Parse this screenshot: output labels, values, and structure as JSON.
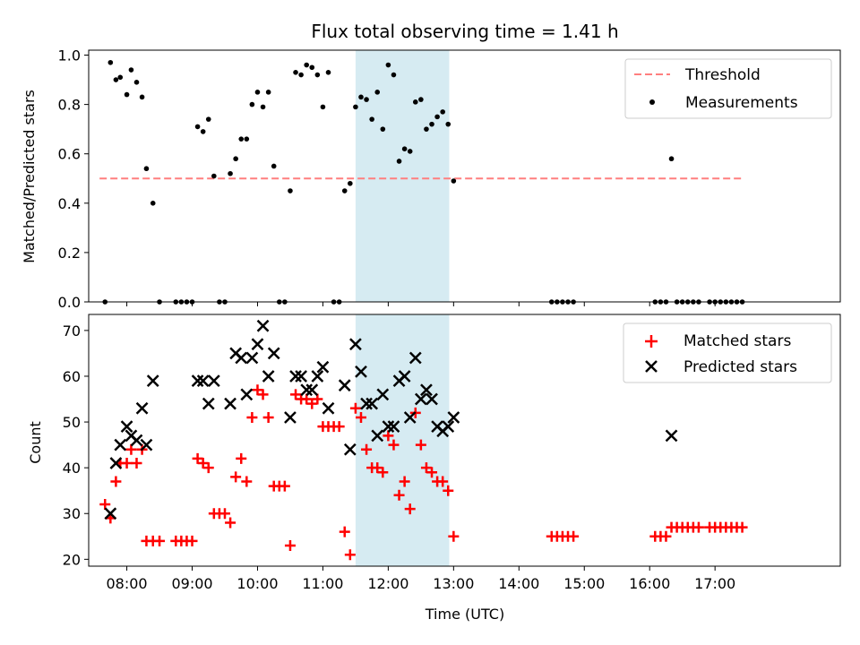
{
  "chart_data": [
    {
      "type": "scatter",
      "title": "Flux total observing time = 1.41 h",
      "ylabel": "Matched/Predicted stars",
      "xlabel": "",
      "xlim": [
        "07:25",
        "18:55"
      ],
      "ylim": [
        0,
        1.02
      ],
      "yticks": [
        "0.0",
        "0.2",
        "0.4",
        "0.6",
        "0.8",
        "1.0"
      ],
      "highlight_span": [
        "11:30",
        "12:56"
      ],
      "threshold": {
        "name": "Threshold",
        "value": 0.5,
        "x": [
          "07:35",
          "17:25"
        ],
        "color": "#ff7f7f"
      },
      "legend": {
        "placement": "top-right",
        "entries": [
          "Threshold",
          "Measurements"
        ]
      },
      "series": [
        {
          "name": "Measurements",
          "color": "#000000",
          "points": [
            [
              "07:40",
              0
            ],
            [
              "07:45",
              0.97
            ],
            [
              "07:50",
              0.9
            ],
            [
              "07:54",
              0.91
            ],
            [
              "08:00",
              0.84
            ],
            [
              "08:04",
              0.94
            ],
            [
              "08:09",
              0.89
            ],
            [
              "08:14",
              0.83
            ],
            [
              "08:18",
              0.54
            ],
            [
              "08:24",
              0.4
            ],
            [
              "08:30",
              0
            ],
            [
              "08:45",
              0
            ],
            [
              "08:50",
              0
            ],
            [
              "08:55",
              0
            ],
            [
              "09:00",
              0
            ],
            [
              "09:05",
              0.71
            ],
            [
              "09:10",
              0.69
            ],
            [
              "09:15",
              0.74
            ],
            [
              "09:20",
              0.51
            ],
            [
              "09:25",
              0
            ],
            [
              "09:30",
              0
            ],
            [
              "09:35",
              0.52
            ],
            [
              "09:40",
              0.58
            ],
            [
              "09:45",
              0.66
            ],
            [
              "09:50",
              0.66
            ],
            [
              "09:55",
              0.8
            ],
            [
              "10:00",
              0.85
            ],
            [
              "10:05",
              0.79
            ],
            [
              "10:10",
              0.85
            ],
            [
              "10:15",
              0.55
            ],
            [
              "10:20",
              0
            ],
            [
              "10:25",
              0
            ],
            [
              "10:30",
              0.45
            ],
            [
              "10:35",
              0.93
            ],
            [
              "10:40",
              0.92
            ],
            [
              "10:45",
              0.96
            ],
            [
              "10:50",
              0.95
            ],
            [
              "10:55",
              0.92
            ],
            [
              "11:00",
              0.79
            ],
            [
              "11:05",
              0.93
            ],
            [
              "11:10",
              0
            ],
            [
              "11:15",
              0
            ],
            [
              "11:20",
              0.45
            ],
            [
              "11:25",
              0.48
            ],
            [
              "11:30",
              0.79
            ],
            [
              "11:35",
              0.83
            ],
            [
              "11:40",
              0.82
            ],
            [
              "11:45",
              0.74
            ],
            [
              "11:50",
              0.85
            ],
            [
              "11:55",
              0.7
            ],
            [
              "12:00",
              0.96
            ],
            [
              "12:05",
              0.92
            ],
            [
              "12:10",
              0.57
            ],
            [
              "12:15",
              0.62
            ],
            [
              "12:20",
              0.61
            ],
            [
              "12:25",
              0.81
            ],
            [
              "12:30",
              0.82
            ],
            [
              "12:35",
              0.7
            ],
            [
              "12:40",
              0.72
            ],
            [
              "12:45",
              0.75
            ],
            [
              "12:50",
              0.77
            ],
            [
              "12:55",
              0.72
            ],
            [
              "13:00",
              0.49
            ],
            [
              "14:30",
              0
            ],
            [
              "14:35",
              0
            ],
            [
              "14:40",
              0
            ],
            [
              "14:45",
              0
            ],
            [
              "14:50",
              0
            ],
            [
              "16:05",
              0
            ],
            [
              "16:10",
              0
            ],
            [
              "16:15",
              0
            ],
            [
              "16:20",
              0.58
            ],
            [
              "16:25",
              0
            ],
            [
              "16:30",
              0
            ],
            [
              "16:35",
              0
            ],
            [
              "16:40",
              0
            ],
            [
              "16:45",
              0
            ],
            [
              "16:55",
              0
            ],
            [
              "17:00",
              0
            ],
            [
              "17:05",
              0
            ],
            [
              "17:10",
              0
            ],
            [
              "17:15",
              0
            ],
            [
              "17:20",
              0
            ],
            [
              "17:25",
              0
            ]
          ]
        }
      ]
    },
    {
      "type": "scatter",
      "title": "",
      "xlabel": "Time (UTC)",
      "ylabel": "Count",
      "xlim": [
        "07:25",
        "18:55"
      ],
      "ylim": [
        18.5,
        73.5
      ],
      "xticks": [
        "08:00",
        "09:00",
        "10:00",
        "11:00",
        "12:00",
        "13:00",
        "14:00",
        "15:00",
        "16:00",
        "17:00"
      ],
      "yticks": [
        "20",
        "30",
        "40",
        "50",
        "60",
        "70"
      ],
      "highlight_span": [
        "11:30",
        "12:56"
      ],
      "legend": {
        "placement": "top-right",
        "entries": [
          "Matched stars",
          "Predicted stars"
        ]
      },
      "series": [
        {
          "name": "Matched stars",
          "marker": "plus",
          "color": "#ff0000",
          "points": [
            [
              "07:40",
              32
            ],
            [
              "07:45",
              29
            ],
            [
              "07:50",
              37
            ],
            [
              "07:54",
              41
            ],
            [
              "08:00",
              41
            ],
            [
              "08:04",
              44
            ],
            [
              "08:09",
              41
            ],
            [
              "08:14",
              44
            ],
            [
              "08:18",
              24
            ],
            [
              "08:24",
              24
            ],
            [
              "08:30",
              24
            ],
            [
              "08:45",
              24
            ],
            [
              "08:50",
              24
            ],
            [
              "08:55",
              24
            ],
            [
              "09:00",
              24
            ],
            [
              "09:05",
              42
            ],
            [
              "09:10",
              41
            ],
            [
              "09:15",
              40
            ],
            [
              "09:20",
              30
            ],
            [
              "09:25",
              30
            ],
            [
              "09:30",
              30
            ],
            [
              "09:35",
              28
            ],
            [
              "09:40",
              38
            ],
            [
              "09:45",
              42
            ],
            [
              "09:50",
              37
            ],
            [
              "09:55",
              51
            ],
            [
              "10:00",
              57
            ],
            [
              "10:05",
              56
            ],
            [
              "10:10",
              51
            ],
            [
              "10:15",
              36
            ],
            [
              "10:20",
              36
            ],
            [
              "10:25",
              36
            ],
            [
              "10:30",
              23
            ],
            [
              "10:35",
              56
            ],
            [
              "10:40",
              55
            ],
            [
              "10:45",
              55
            ],
            [
              "10:50",
              54
            ],
            [
              "10:55",
              55
            ],
            [
              "11:00",
              49
            ],
            [
              "11:05",
              49
            ],
            [
              "11:10",
              49
            ],
            [
              "11:15",
              49
            ],
            [
              "11:20",
              26
            ],
            [
              "11:25",
              21
            ],
            [
              "11:30",
              53
            ],
            [
              "11:35",
              51
            ],
            [
              "11:40",
              44
            ],
            [
              "11:45",
              40
            ],
            [
              "11:50",
              40
            ],
            [
              "11:55",
              39
            ],
            [
              "12:00",
              47
            ],
            [
              "12:05",
              45
            ],
            [
              "12:10",
              34
            ],
            [
              "12:15",
              37
            ],
            [
              "12:20",
              31
            ],
            [
              "12:25",
              52
            ],
            [
              "12:30",
              45
            ],
            [
              "12:35",
              40
            ],
            [
              "12:40",
              39
            ],
            [
              "12:45",
              37
            ],
            [
              "12:50",
              37
            ],
            [
              "12:55",
              35
            ],
            [
              "13:00",
              25
            ],
            [
              "14:30",
              25
            ],
            [
              "14:35",
              25
            ],
            [
              "14:40",
              25
            ],
            [
              "14:45",
              25
            ],
            [
              "14:50",
              25
            ],
            [
              "16:05",
              25
            ],
            [
              "16:10",
              25
            ],
            [
              "16:15",
              25
            ],
            [
              "16:20",
              27
            ],
            [
              "16:25",
              27
            ],
            [
              "16:30",
              27
            ],
            [
              "16:35",
              27
            ],
            [
              "16:40",
              27
            ],
            [
              "16:45",
              27
            ],
            [
              "16:55",
              27
            ],
            [
              "17:00",
              27
            ],
            [
              "17:05",
              27
            ],
            [
              "17:10",
              27
            ],
            [
              "17:15",
              27
            ],
            [
              "17:20",
              27
            ],
            [
              "17:25",
              27
            ]
          ]
        },
        {
          "name": "Predicted stars",
          "marker": "x",
          "color": "#000000",
          "points": [
            [
              "07:45",
              30
            ],
            [
              "07:50",
              41
            ],
            [
              "07:54",
              45
            ],
            [
              "08:00",
              49
            ],
            [
              "08:04",
              47
            ],
            [
              "08:09",
              46
            ],
            [
              "08:14",
              53
            ],
            [
              "08:18",
              45
            ],
            [
              "08:24",
              59
            ],
            [
              "09:05",
              59
            ],
            [
              "09:10",
              59
            ],
            [
              "09:15",
              54
            ],
            [
              "09:20",
              59
            ],
            [
              "09:35",
              54
            ],
            [
              "09:40",
              65
            ],
            [
              "09:45",
              64
            ],
            [
              "09:50",
              56
            ],
            [
              "09:55",
              64
            ],
            [
              "10:00",
              67
            ],
            [
              "10:05",
              71
            ],
            [
              "10:10",
              60
            ],
            [
              "10:15",
              65
            ],
            [
              "10:30",
              51
            ],
            [
              "10:35",
              60
            ],
            [
              "10:40",
              60
            ],
            [
              "10:45",
              57
            ],
            [
              "10:50",
              57
            ],
            [
              "10:55",
              60
            ],
            [
              "11:00",
              62
            ],
            [
              "11:05",
              53
            ],
            [
              "11:20",
              58
            ],
            [
              "11:25",
              44
            ],
            [
              "11:30",
              67
            ],
            [
              "11:35",
              61
            ],
            [
              "11:40",
              54
            ],
            [
              "11:45",
              54
            ],
            [
              "11:50",
              47
            ],
            [
              "11:55",
              56
            ],
            [
              "12:00",
              49
            ],
            [
              "12:05",
              49
            ],
            [
              "12:10",
              59
            ],
            [
              "12:15",
              60
            ],
            [
              "12:20",
              51
            ],
            [
              "12:25",
              64
            ],
            [
              "12:30",
              55
            ],
            [
              "12:35",
              57
            ],
            [
              "12:40",
              55
            ],
            [
              "12:45",
              49
            ],
            [
              "12:50",
              48
            ],
            [
              "12:55",
              49
            ],
            [
              "13:00",
              51
            ],
            [
              "16:20",
              47
            ]
          ]
        }
      ]
    }
  ]
}
